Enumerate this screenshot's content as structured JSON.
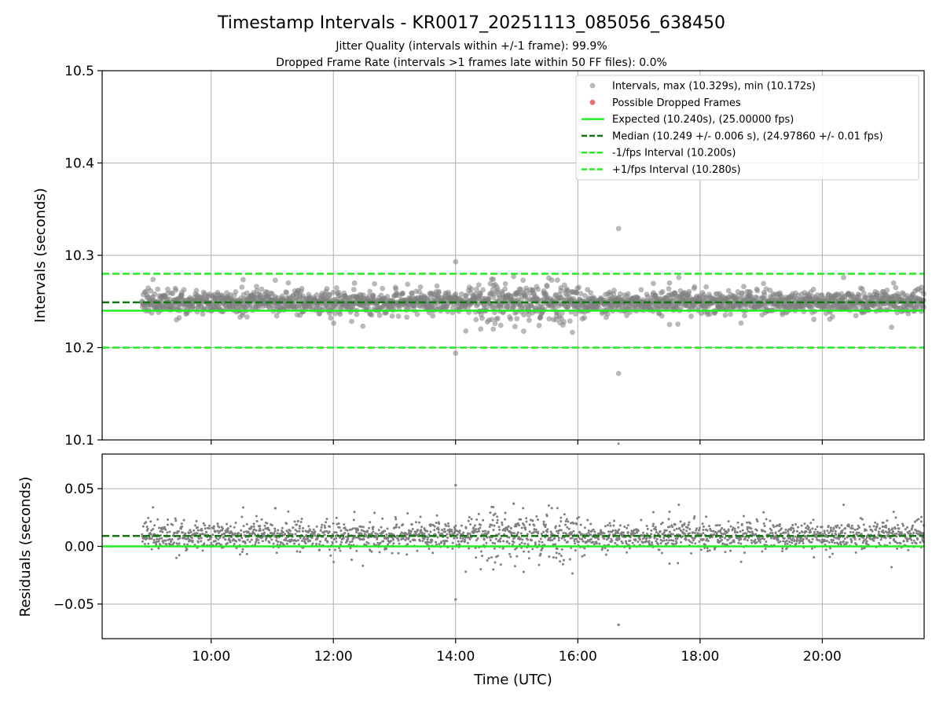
{
  "figure": {
    "title": "Timestamp Intervals - KR0017_20251113_085056_638450",
    "subtitle_1": "Jitter Quality (intervals within +/-1 frame): 99.9%",
    "subtitle_2": "Dropped Frame Rate (intervals >1 frames late within 50 FF files): 0.0%"
  },
  "colors": {
    "points": "#808080",
    "dropped": "#e8474a",
    "expected": "#22ee22",
    "median": "#117711",
    "interval_bounds": "#22ee22",
    "grid": "#b0b0b0"
  },
  "chart_data": [
    {
      "type": "scatter",
      "ylabel": "Intervals (seconds)",
      "ylim": [
        10.1,
        10.5
      ],
      "yticks": [
        "10.1",
        "10.2",
        "10.3",
        "10.4",
        "10.5"
      ],
      "xlim": [
        "08:13",
        "21:40"
      ],
      "xticks": [
        "10:00",
        "12:00",
        "14:00",
        "16:00",
        "18:00",
        "20:00"
      ],
      "grid": true,
      "legend_position": "top-right",
      "legend": [
        "Intervals, max (10.329s), min (10.172s)",
        "Possible Dropped Frames",
        "Expected (10.240s), (25.00000 fps)",
        "Median (10.249 +/- 0.006 s), (24.97860 +/- 0.01 fps)",
        "-1/fps Interval (10.200s)",
        "+1/fps Interval (10.280s)"
      ],
      "series": [
        {
          "name": "Intervals, max (10.329s), min (10.172s)",
          "x_range": [
            "08:52",
            "21:40"
          ],
          "median": 10.249,
          "spread": 0.006
        },
        {
          "name": "Possible Dropped Frames",
          "values": []
        }
      ],
      "lines": [
        {
          "name": "Expected (10.240s), (25.00000 fps)",
          "y": 10.24,
          "style": "solid"
        },
        {
          "name": "Median (10.249 +/- 0.006 s), (24.97860 +/- 0.01 fps)",
          "y": 10.249,
          "style": "dashed"
        },
        {
          "name": "-1/fps Interval (10.200s)",
          "y": 10.2,
          "style": "dashed"
        },
        {
          "name": "+1/fps Interval (10.280s)",
          "y": 10.28,
          "style": "dashed"
        }
      ],
      "notable_points": [
        {
          "x": "16:40",
          "y": 10.329
        },
        {
          "x": "16:40",
          "y": 10.172
        },
        {
          "x": "14:00",
          "y": 10.293
        },
        {
          "x": "14:00",
          "y": 10.194
        },
        {
          "x": "14:57",
          "y": 10.277
        },
        {
          "x": "14:37",
          "y": 10.274
        },
        {
          "x": "11:03",
          "y": 10.273
        },
        {
          "x": "21:10",
          "y": 10.27
        },
        {
          "x": "17:30",
          "y": 10.27
        },
        {
          "x": "14:10",
          "y": 10.218
        },
        {
          "x": "14:37",
          "y": 10.22
        },
        {
          "x": "17:30",
          "y": 10.225
        },
        {
          "x": "21:08",
          "y": 10.222
        }
      ]
    },
    {
      "type": "scatter",
      "xlabel": "Time (UTC)",
      "ylabel": "Residuals (seconds)",
      "ylim": [
        -0.08,
        0.08
      ],
      "yticks": [
        "−0.05",
        "0.00",
        "0.05"
      ],
      "xlim": [
        "08:13",
        "21:40"
      ],
      "xticks": [
        "10:00",
        "12:00",
        "14:00",
        "16:00",
        "18:00",
        "20:00"
      ],
      "grid": true,
      "lines": [
        {
          "name": "Expected",
          "y": 0.0,
          "style": "solid"
        },
        {
          "name": "Median",
          "y": 0.009,
          "style": "dashed"
        }
      ],
      "notable_points": [
        {
          "x": "14:00",
          "y": 0.053
        },
        {
          "x": "14:00",
          "y": -0.046
        },
        {
          "x": "16:40",
          "y": -0.068
        },
        {
          "x": "14:57",
          "y": 0.037
        },
        {
          "x": "11:03",
          "y": 0.033
        }
      ]
    }
  ]
}
